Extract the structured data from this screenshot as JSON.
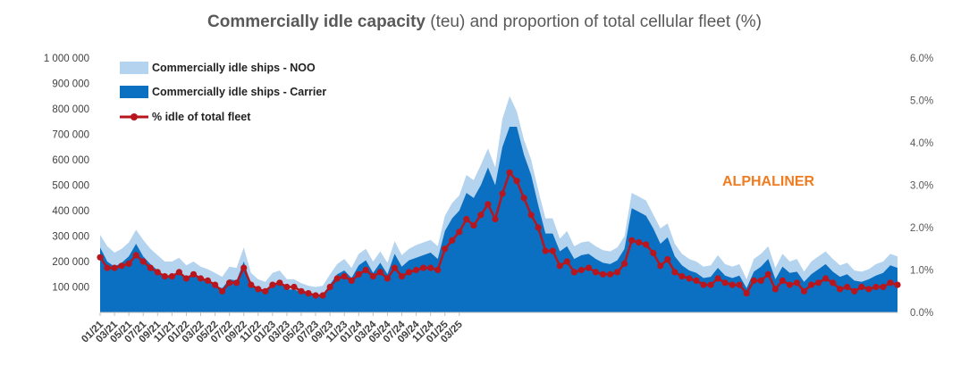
{
  "chart_data": {
    "type": "area",
    "title_main": "Commercially idle capacity",
    "title_rest": " (teu) and proportion of total cellular fleet (%)",
    "title_full": "Commercially idle capacity (teu) and proportion of total cellular fleet (%)",
    "brand": "ALPHALINER",
    "ylim": [
      0,
      1000000
    ],
    "y2lim": [
      0,
      6
    ],
    "yticks": [
      "1 000 000",
      "900 000",
      "800 000",
      "700 000",
      "600 000",
      "500 000",
      "400 000",
      "300 000",
      "200 000",
      "100 000"
    ],
    "y2ticks": [
      "6.0%",
      "5.0%",
      "4.0%",
      "3.0%",
      "2.0%",
      "1.0%",
      "0.0%"
    ],
    "x_labels": [
      "01/21",
      "03/21",
      "05/21",
      "07/21",
      "09/21",
      "11/21",
      "01/22",
      "03/22",
      "05/22",
      "07/22",
      "09/22",
      "11/22",
      "01/23",
      "03/23",
      "05/23",
      "07/23",
      "09/23",
      "11/23",
      "01/24",
      "03/24",
      "05/24",
      "07/24",
      "09/24",
      "11/24",
      "01/25",
      "03/25"
    ],
    "colors": {
      "noo": "#b4d3ee",
      "carrier": "#0b70c1",
      "pct": "#b7161e",
      "brand": "#f07c22"
    },
    "series": [
      {
        "name": "Commercially idle ships - NOO",
        "axis": "left",
        "values": [
          305000,
          260000,
          235000,
          250000,
          275000,
          325000,
          285000,
          250000,
          225000,
          200000,
          200000,
          215000,
          185000,
          200000,
          180000,
          170000,
          155000,
          140000,
          180000,
          175000,
          255000,
          155000,
          130000,
          120000,
          155000,
          165000,
          130000,
          130000,
          115000,
          105000,
          100000,
          105000,
          150000,
          190000,
          210000,
          175000,
          230000,
          250000,
          200000,
          240000,
          195000,
          280000,
          225000,
          250000,
          265000,
          275000,
          285000,
          260000,
          380000,
          430000,
          460000,
          540000,
          520000,
          580000,
          645000,
          570000,
          760000,
          850000,
          790000,
          680000,
          600000,
          480000,
          370000,
          370000,
          290000,
          320000,
          260000,
          275000,
          280000,
          260000,
          245000,
          240000,
          255000,
          300000,
          470000,
          455000,
          440000,
          385000,
          330000,
          350000,
          270000,
          230000,
          210000,
          200000,
          180000,
          185000,
          225000,
          190000,
          180000,
          190000,
          130000,
          210000,
          230000,
          260000,
          175000,
          230000,
          200000,
          210000,
          160000,
          200000,
          220000,
          240000,
          210000,
          185000,
          195000,
          165000,
          160000,
          170000,
          190000,
          200000,
          230000,
          220000
        ],
        "values_mode": "total_stack"
      },
      {
        "name": "Commercially idle ships - Carrier",
        "axis": "left",
        "values": [
          255000,
          200000,
          180000,
          195000,
          220000,
          270000,
          220000,
          190000,
          165000,
          145000,
          145000,
          165000,
          130000,
          150000,
          130000,
          120000,
          105000,
          95000,
          130000,
          125000,
          200000,
          110000,
          95000,
          85000,
          110000,
          120000,
          90000,
          90000,
          80000,
          70000,
          65000,
          70000,
          110000,
          150000,
          165000,
          135000,
          185000,
          205000,
          155000,
          195000,
          150000,
          230000,
          180000,
          205000,
          215000,
          225000,
          235000,
          210000,
          320000,
          370000,
          400000,
          470000,
          450000,
          500000,
          570000,
          500000,
          650000,
          730000,
          730000,
          620000,
          540000,
          420000,
          310000,
          310000,
          240000,
          260000,
          210000,
          225000,
          230000,
          210000,
          195000,
          190000,
          205000,
          250000,
          410000,
          395000,
          380000,
          330000,
          270000,
          295000,
          220000,
          185000,
          165000,
          155000,
          135000,
          140000,
          175000,
          145000,
          135000,
          145000,
          95000,
          160000,
          180000,
          210000,
          130000,
          180000,
          155000,
          160000,
          120000,
          150000,
          170000,
          190000,
          160000,
          140000,
          150000,
          125000,
          120000,
          130000,
          145000,
          155000,
          185000,
          175000
        ]
      },
      {
        "name": "% idle of total fleet",
        "axis": "right",
        "values": [
          1.3,
          1.05,
          1.05,
          1.1,
          1.15,
          1.35,
          1.2,
          1.05,
          0.95,
          0.85,
          0.85,
          0.95,
          0.8,
          0.9,
          0.8,
          0.75,
          0.65,
          0.5,
          0.7,
          0.7,
          1.05,
          0.65,
          0.55,
          0.5,
          0.65,
          0.7,
          0.6,
          0.6,
          0.5,
          0.45,
          0.4,
          0.4,
          0.6,
          0.8,
          0.85,
          0.75,
          0.9,
          1.0,
          0.85,
          0.95,
          0.8,
          1.05,
          0.85,
          0.95,
          1.0,
          1.05,
          1.05,
          1.0,
          1.5,
          1.7,
          1.9,
          2.2,
          2.05,
          2.3,
          2.55,
          2.2,
          2.8,
          3.3,
          3.1,
          2.7,
          2.3,
          2.0,
          1.45,
          1.45,
          1.1,
          1.2,
          0.95,
          1.0,
          1.05,
          0.95,
          0.9,
          0.9,
          0.95,
          1.15,
          1.7,
          1.65,
          1.6,
          1.4,
          1.1,
          1.25,
          0.95,
          0.85,
          0.8,
          0.75,
          0.65,
          0.65,
          0.8,
          0.7,
          0.65,
          0.65,
          0.45,
          0.75,
          0.75,
          0.9,
          0.55,
          0.75,
          0.65,
          0.7,
          0.5,
          0.65,
          0.7,
          0.8,
          0.7,
          0.55,
          0.6,
          0.5,
          0.6,
          0.55,
          0.6,
          0.6,
          0.7,
          0.65
        ]
      }
    ],
    "legend_position": "top-left",
    "grid": false
  }
}
